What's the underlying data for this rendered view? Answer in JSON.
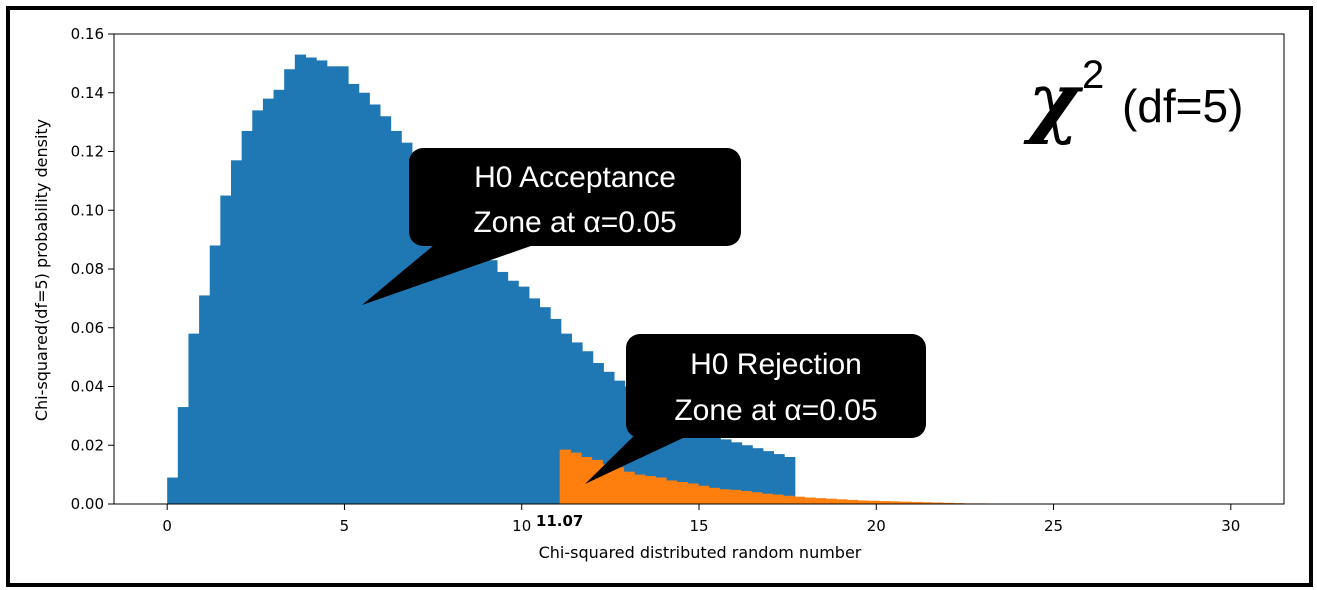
{
  "chart_data": {
    "type": "bar",
    "title": "",
    "xlabel": "Chi-squared distributed random number",
    "ylabel": "Chi-squared(df=5) probability density",
    "xlim": [
      -1.5,
      31.5
    ],
    "ylim": [
      0,
      0.16
    ],
    "xticks": [
      0,
      5,
      10,
      15,
      20,
      25,
      30
    ],
    "xtick_labels": [
      "0",
      "5",
      "10",
      "15",
      "20",
      "25",
      "30"
    ],
    "yticks": [
      0.0,
      0.02,
      0.04,
      0.06,
      0.08,
      0.1,
      0.12,
      0.14,
      0.16
    ],
    "ytick_labels": [
      "0.00",
      "0.02",
      "0.04",
      "0.06",
      "0.08",
      "0.10",
      "0.12",
      "0.14",
      "0.16"
    ],
    "critical_value": 11.07,
    "critical_label": "11.07",
    "bin_width": 0.3,
    "bin_start": 0,
    "series": [
      {
        "name": "",
        "color": "#1f77b4",
        "values": [
          0.009,
          0.033,
          0.058,
          0.071,
          0.088,
          0.105,
          0.117,
          0.127,
          0.134,
          0.138,
          0.141,
          0.148,
          0.153,
          0.152,
          0.151,
          0.149,
          0.149,
          0.143,
          0.14,
          0.136,
          0.132,
          0.127,
          0.123,
          0.118,
          0.112,
          0.107,
          0.102,
          0.097,
          0.093,
          0.089,
          0.083,
          0.079,
          0.076,
          0.074,
          0.07,
          0.067,
          0.063,
          0.058,
          0.055,
          0.052,
          0.048,
          0.045,
          0.042,
          0.04,
          0.037,
          0.034,
          0.032,
          0.03,
          0.028,
          0.026,
          0.025,
          0.023,
          0.022,
          0.021,
          0.02,
          0.019,
          0.018,
          0.017,
          0.016
        ]
      },
      {
        "name": "",
        "color": "#ff7f0e",
        "start": 11.07,
        "values": [
          0.0185,
          0.0175,
          0.016,
          0.015,
          0.0135,
          0.0125,
          0.011,
          0.01,
          0.0095,
          0.009,
          0.008,
          0.0075,
          0.007,
          0.0062,
          0.0055,
          0.005,
          0.0048,
          0.0044,
          0.004,
          0.0035,
          0.0032,
          0.0028,
          0.0025,
          0.0022,
          0.002,
          0.0018,
          0.0016,
          0.0014,
          0.0012,
          0.0011,
          0.001,
          0.0009,
          0.0008,
          0.0007,
          0.0006,
          0.0005,
          0.0004,
          0.0003,
          0.0002,
          0.0002,
          0.0001
        ]
      }
    ]
  },
  "annotations": {
    "chi_symbol": "χ",
    "chi_superscript": "2",
    "chi_df": "(df=5)",
    "acceptance_line1": "H0 Acceptance",
    "acceptance_line2": "Zone at α=0.05",
    "rejection_line1": "H0 Rejection",
    "rejection_line2": "Zone at α=0.05"
  }
}
